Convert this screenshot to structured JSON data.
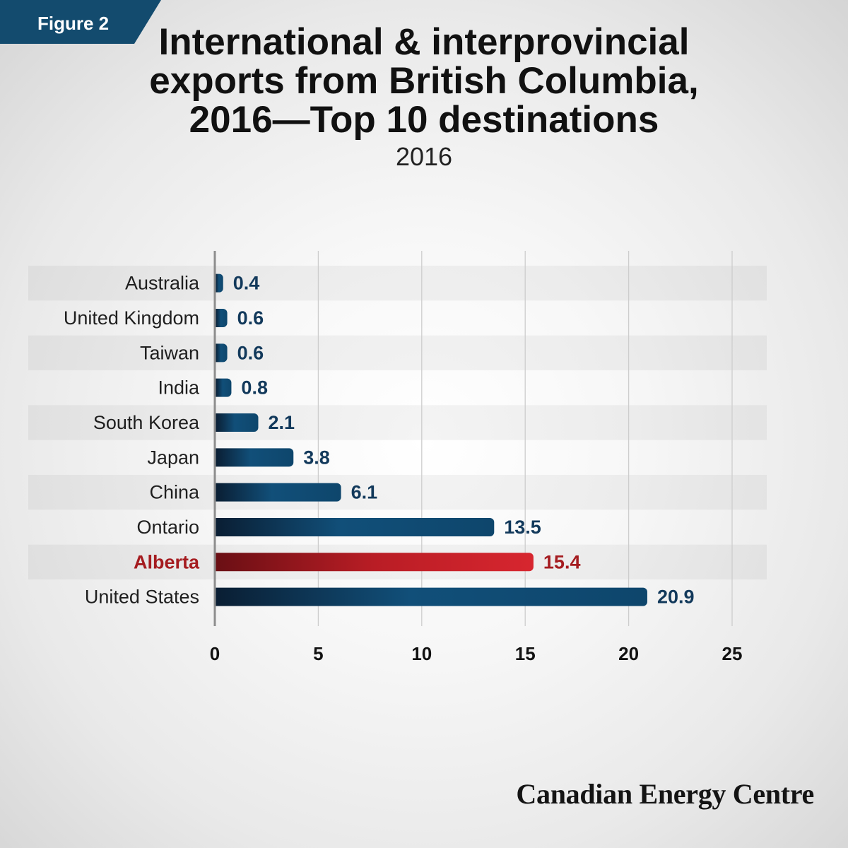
{
  "figure_label": "Figure 2",
  "chart_data": {
    "type": "bar",
    "orientation": "horizontal",
    "title": "International & interprovincial exports from British Columbia, 2016—Top 10 destinations",
    "subtitle": "2016",
    "categories": [
      "Australia",
      "United Kingdom",
      "Taiwan",
      "India",
      "South Korea",
      "Japan",
      "China",
      "Ontario",
      "Alberta",
      "United States"
    ],
    "values": [
      0.4,
      0.6,
      0.6,
      0.8,
      2.1,
      3.8,
      6.1,
      13.5,
      15.4,
      20.9
    ],
    "xlim": [
      0,
      25
    ],
    "xticks": [
      0,
      5,
      10,
      15,
      20,
      25
    ],
    "grid": true,
    "data_labels": true,
    "highlight": {
      "category": "Alberta",
      "color": "#b91d25"
    },
    "colors": {
      "bar": "#114f79",
      "value_label": "#12395b",
      "highlight_label": "#a51c20"
    }
  },
  "footer": {
    "brand": "Canadian Energy Centre"
  },
  "colors": {
    "figure_tab": "#134b6e",
    "title": "#111111"
  }
}
